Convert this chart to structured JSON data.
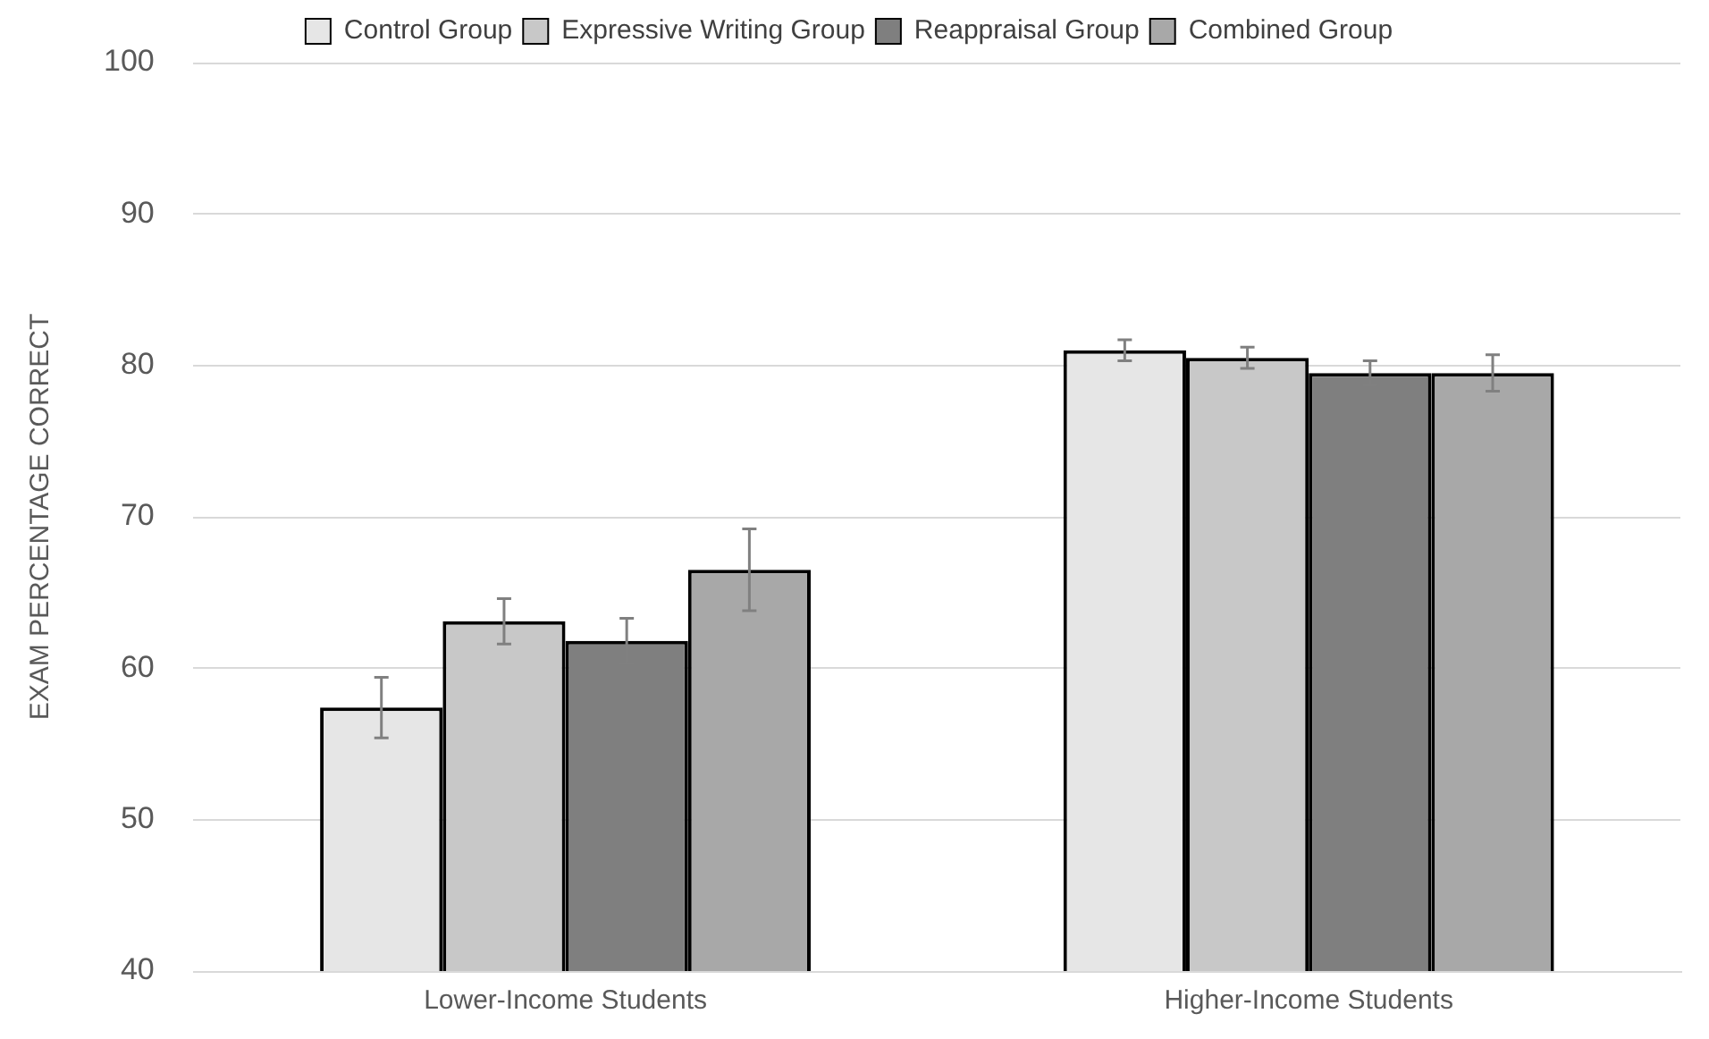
{
  "chart_data": {
    "type": "bar",
    "ylabel": "EXAM PERCENTAGE CORRECT",
    "categories": [
      "Lower-Income Students",
      "Higher-Income Students"
    ],
    "series": [
      {
        "name": "Control Group",
        "color": "#e6e6e6",
        "values": [
          57.4,
          81.0
        ],
        "errors": [
          2.0,
          0.7
        ]
      },
      {
        "name": "Expressive Writing Group",
        "color": "#c8c8c8",
        "values": [
          63.1,
          80.5
        ],
        "errors": [
          1.5,
          0.7
        ]
      },
      {
        "name": "Reappraisal Group",
        "color": "#7f7f7f",
        "values": [
          61.8,
          79.5
        ],
        "errors": [
          1.5,
          0.8
        ]
      },
      {
        "name": "Combined Group",
        "color": "#a8a8a8",
        "values": [
          66.5,
          79.5
        ],
        "errors": [
          2.7,
          1.2
        ]
      }
    ],
    "ylim": [
      40,
      100
    ],
    "yticks": [
      40,
      50,
      60,
      70,
      80,
      90,
      100
    ],
    "grid": "y",
    "legend": "top"
  }
}
